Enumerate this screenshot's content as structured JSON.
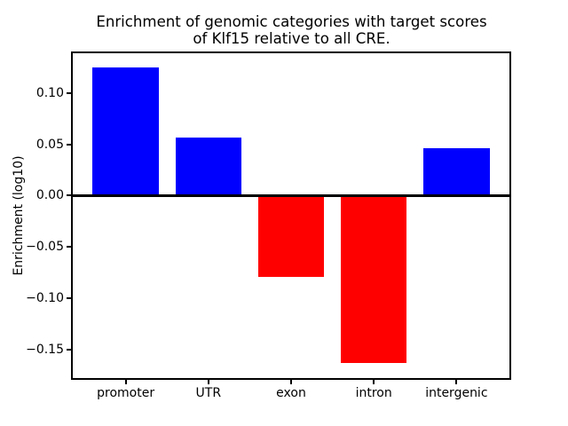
{
  "figure": {
    "title_line1": "Enrichment of genomic categories with target scores",
    "title_line2": "of Klf15 relative to all CRE.",
    "ylabel": "Enrichment (log10)"
  },
  "chart_data": {
    "type": "bar",
    "title": "Enrichment of genomic categories with target scores of Klf15 relative to all CRE.",
    "xlabel": "",
    "ylabel": "Enrichment (log10)",
    "categories": [
      "promoter",
      "UTR",
      "exon",
      "intron",
      "intergenic"
    ],
    "values": [
      0.125,
      0.057,
      -0.079,
      -0.163,
      0.046
    ],
    "bar_colors": [
      "#0000ff",
      "#0000ff",
      "#ff0000",
      "#ff0000",
      "#0000ff"
    ],
    "positive_color": "#0000ff",
    "negative_color": "#ff0000",
    "bar_width": 0.8,
    "xlim": [
      -0.64,
      4.64
    ],
    "ylim": [
      -0.178,
      0.139
    ],
    "yticks": [
      {
        "value": 0.1,
        "label": "0.10"
      },
      {
        "value": 0.05,
        "label": "0.05"
      },
      {
        "value": 0.0,
        "label": "0.00"
      },
      {
        "value": -0.05,
        "label": "−0.05"
      },
      {
        "value": -0.1,
        "label": "−0.10"
      },
      {
        "value": -0.15,
        "label": "−0.15"
      }
    ],
    "zero_line": true,
    "grid": false,
    "legend": false
  }
}
